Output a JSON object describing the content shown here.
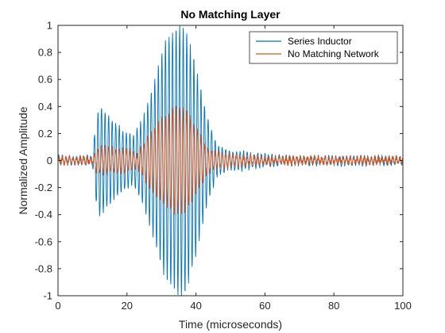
{
  "chart_data": {
    "type": "line",
    "title": "No Matching Layer",
    "xlabel": "Time (microseconds)",
    "ylabel": "Normalized Amplitude",
    "xlim": [
      0,
      100
    ],
    "ylim": [
      -1,
      1
    ],
    "xticks": [
      0,
      20,
      40,
      60,
      80,
      100
    ],
    "yticks": [
      -1,
      -0.8,
      -0.6,
      -0.4,
      -0.2,
      0,
      0.2,
      0.4,
      0.6,
      0.8,
      1
    ],
    "grid": false,
    "legend_position": "top-right",
    "series": [
      {
        "name": "Series Inductor",
        "color": "#0072BD",
        "signal_period_us": 1.03,
        "envelope": [
          [
            0,
            0.03
          ],
          [
            10,
            0.03
          ],
          [
            11,
            0.3
          ],
          [
            12,
            0.42
          ],
          [
            15,
            0.32
          ],
          [
            20,
            0.2
          ],
          [
            22,
            0.18
          ],
          [
            25,
            0.35
          ],
          [
            28,
            0.6
          ],
          [
            31,
            0.88
          ],
          [
            35,
            1.0
          ],
          [
            37,
            0.98
          ],
          [
            40,
            0.7
          ],
          [
            43,
            0.35
          ],
          [
            46,
            0.12
          ],
          [
            50,
            0.06
          ],
          [
            53,
            0.07
          ],
          [
            57,
            0.05
          ],
          [
            65,
            0.03
          ],
          [
            100,
            0.03
          ]
        ],
        "noise": 0.015
      },
      {
        "name": "No Matching Network",
        "color": "#D95319",
        "signal_period_us": 1.03,
        "envelope": [
          [
            0,
            0.02
          ],
          [
            10,
            0.02
          ],
          [
            11,
            0.08
          ],
          [
            13,
            0.1
          ],
          [
            20,
            0.08
          ],
          [
            23,
            0.05
          ],
          [
            26,
            0.18
          ],
          [
            30,
            0.32
          ],
          [
            34,
            0.4
          ],
          [
            37,
            0.38
          ],
          [
            40,
            0.25
          ],
          [
            43,
            0.1
          ],
          [
            46,
            0.06
          ],
          [
            52,
            0.04
          ],
          [
            60,
            0.02
          ],
          [
            100,
            0.02
          ]
        ],
        "noise": 0.02
      }
    ]
  }
}
